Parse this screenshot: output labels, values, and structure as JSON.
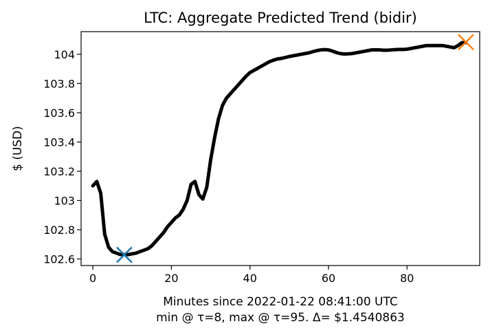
{
  "chart_data": {
    "type": "line",
    "title": "LTC: Aggregate Predicted Trend (bidir)",
    "xlabel": "Minutes since 2022-01-22 08:41:00 UTC",
    "xlabel_line2": "min @ τ=8, max @ τ=95. Δ= $1.4540863",
    "ylabel": "$ (USD)",
    "xlim": [
      -3,
      98.5
    ],
    "ylim": [
      102.555,
      104.155
    ],
    "x_ticks": [
      0,
      20,
      40,
      60,
      80
    ],
    "x_tick_labels": [
      "0",
      "20",
      "40",
      "60",
      "80"
    ],
    "y_ticks": [
      102.6,
      102.8,
      103.0,
      103.2,
      103.4,
      103.6,
      103.8,
      104.0
    ],
    "y_tick_labels": [
      "102.6",
      "102.8",
      "103",
      "103.2",
      "103.4",
      "103.6",
      "103.8",
      "104"
    ],
    "grid": false,
    "series": [
      {
        "color": "#000000",
        "x": [
          0,
          1,
          2,
          3,
          4,
          5,
          6,
          7,
          8,
          9,
          10,
          11,
          12,
          13,
          14,
          15,
          16,
          17,
          18,
          19,
          20,
          21,
          22,
          23,
          24,
          25,
          26,
          27,
          28,
          29,
          30,
          31,
          32,
          33,
          34,
          35,
          36,
          37,
          38,
          39,
          40,
          41,
          42,
          43,
          44,
          45,
          46,
          47,
          48,
          49,
          50,
          51,
          52,
          53,
          54,
          55,
          56,
          57,
          58,
          59,
          60,
          61,
          62,
          63,
          64,
          65,
          66,
          67,
          68,
          69,
          70,
          71,
          72,
          73,
          74,
          75,
          76,
          77,
          78,
          79,
          80,
          81,
          82,
          83,
          84,
          85,
          86,
          87,
          88,
          89,
          90,
          91,
          92,
          93,
          94,
          95
        ],
        "values": [
          103.1,
          103.13,
          103.05,
          102.77,
          102.68,
          102.65,
          102.64,
          102.63,
          102.63,
          102.63,
          102.635,
          102.64,
          102.65,
          102.66,
          102.67,
          102.69,
          102.72,
          102.75,
          102.78,
          102.82,
          102.85,
          102.88,
          102.9,
          102.94,
          103.0,
          103.11,
          103.13,
          103.04,
          103.01,
          103.09,
          103.28,
          103.43,
          103.56,
          103.65,
          103.7,
          103.73,
          103.76,
          103.79,
          103.82,
          103.85,
          103.875,
          103.89,
          103.905,
          103.92,
          103.935,
          103.95,
          103.96,
          103.968,
          103.972,
          103.978,
          103.985,
          103.99,
          103.995,
          104.0,
          104.005,
          104.01,
          104.018,
          104.025,
          104.03,
          104.032,
          104.03,
          104.022,
          104.012,
          104.005,
          104.002,
          104.003,
          104.005,
          104.01,
          104.015,
          104.02,
          104.025,
          104.03,
          104.03,
          104.03,
          104.028,
          104.028,
          104.03,
          104.032,
          104.033,
          104.033,
          104.035,
          104.04,
          104.045,
          104.05,
          104.055,
          104.06,
          104.06,
          104.06,
          104.06,
          104.06,
          104.055,
          104.05,
          104.045,
          104.06,
          104.08,
          104.08
        ]
      }
    ],
    "markers": [
      {
        "label": "min",
        "x": 8,
        "y": 102.628,
        "symbol": "x",
        "color": "#1f77b4"
      },
      {
        "label": "max",
        "x": 95,
        "y": 104.083,
        "symbol": "x",
        "color": "#ff7f0e"
      }
    ]
  }
}
